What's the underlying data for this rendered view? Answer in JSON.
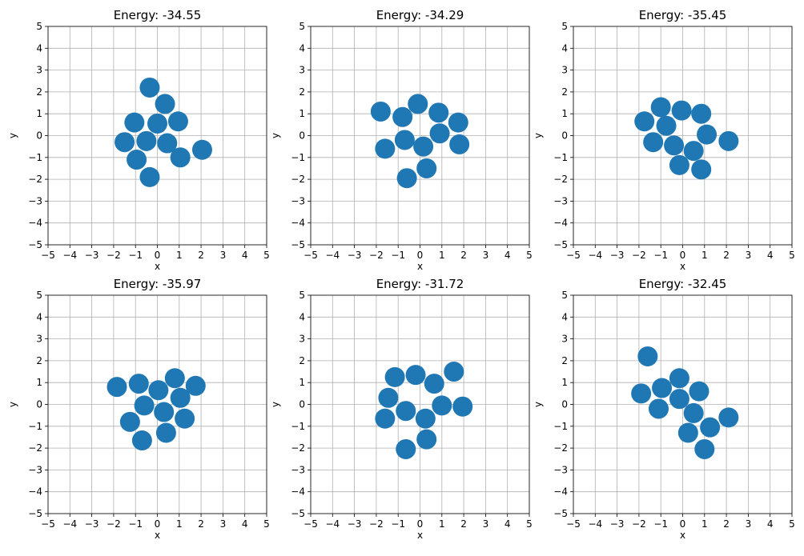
{
  "chart_data": [
    {
      "type": "scatter",
      "title": "Energy: -34.55",
      "xlabel": "x",
      "ylabel": "y",
      "xlim": [
        -5,
        5
      ],
      "ylim": [
        -5,
        5
      ],
      "xticks": [
        "−5",
        "−4",
        "−3",
        "−2",
        "−1",
        "0",
        "1",
        "2",
        "3",
        "4",
        "5"
      ],
      "yticks": [
        "−5",
        "−4",
        "−3",
        "−2",
        "−1",
        "0",
        "1",
        "2",
        "3",
        "4",
        "5"
      ],
      "grid": true,
      "marker_color": "#1f77b4",
      "points": [
        [
          -0.35,
          2.2
        ],
        [
          0.35,
          1.45
        ],
        [
          -1.05,
          0.6
        ],
        [
          0.0,
          0.55
        ],
        [
          0.95,
          0.65
        ],
        [
          -1.5,
          -0.3
        ],
        [
          -0.5,
          -0.25
        ],
        [
          0.45,
          -0.35
        ],
        [
          -0.95,
          -1.1
        ],
        [
          1.05,
          -1.0
        ],
        [
          2.05,
          -0.65
        ],
        [
          -0.35,
          -1.9
        ]
      ]
    },
    {
      "type": "scatter",
      "title": "Energy: -34.29",
      "xlabel": "x",
      "ylabel": "y",
      "xlim": [
        -5,
        5
      ],
      "ylim": [
        -5,
        5
      ],
      "xticks": [
        "−5",
        "−4",
        "−3",
        "−2",
        "−1",
        "0",
        "1",
        "2",
        "3",
        "4",
        "5"
      ],
      "yticks": [
        "−5",
        "−4",
        "−3",
        "−2",
        "−1",
        "0",
        "1",
        "2",
        "3",
        "4",
        "5"
      ],
      "grid": true,
      "marker_color": "#1f77b4",
      "points": [
        [
          -1.8,
          1.1
        ],
        [
          -0.8,
          0.85
        ],
        [
          -0.1,
          1.45
        ],
        [
          0.85,
          1.05
        ],
        [
          1.75,
          0.6
        ],
        [
          -1.6,
          -0.6
        ],
        [
          -0.7,
          -0.2
        ],
        [
          0.15,
          -0.5
        ],
        [
          0.9,
          0.1
        ],
        [
          1.8,
          -0.4
        ],
        [
          0.3,
          -1.5
        ],
        [
          -0.6,
          -1.95
        ]
      ]
    },
    {
      "type": "scatter",
      "title": "Energy: -35.45",
      "xlabel": "x",
      "ylabel": "y",
      "xlim": [
        -5,
        5
      ],
      "ylim": [
        -5,
        5
      ],
      "xticks": [
        "−5",
        "−4",
        "−3",
        "−2",
        "−1",
        "0",
        "1",
        "2",
        "3",
        "4",
        "5"
      ],
      "yticks": [
        "−5",
        "−4",
        "−3",
        "−2",
        "−1",
        "0",
        "1",
        "2",
        "3",
        "4",
        "5"
      ],
      "grid": true,
      "marker_color": "#1f77b4",
      "points": [
        [
          -1.0,
          1.3
        ],
        [
          -0.05,
          1.15
        ],
        [
          0.85,
          1.0
        ],
        [
          -1.75,
          0.65
        ],
        [
          -0.75,
          0.45
        ],
        [
          1.1,
          0.05
        ],
        [
          -1.35,
          -0.3
        ],
        [
          -0.4,
          -0.45
        ],
        [
          0.5,
          -0.7
        ],
        [
          2.1,
          -0.25
        ],
        [
          -0.15,
          -1.35
        ],
        [
          0.85,
          -1.55
        ]
      ]
    },
    {
      "type": "scatter",
      "title": "Energy: -35.97",
      "xlabel": "x",
      "ylabel": "y",
      "xlim": [
        -5,
        5
      ],
      "ylim": [
        -5,
        5
      ],
      "xticks": [
        "−5",
        "−4",
        "−3",
        "−2",
        "−1",
        "0",
        "1",
        "2",
        "3",
        "4",
        "5"
      ],
      "yticks": [
        "−5",
        "−4",
        "−3",
        "−2",
        "−1",
        "0",
        "1",
        "2",
        "3",
        "4",
        "5"
      ],
      "grid": true,
      "marker_color": "#1f77b4",
      "points": [
        [
          -1.85,
          0.8
        ],
        [
          -0.85,
          0.95
        ],
        [
          0.05,
          0.65
        ],
        [
          0.8,
          1.2
        ],
        [
          1.75,
          0.85
        ],
        [
          -0.6,
          -0.05
        ],
        [
          1.05,
          0.3
        ],
        [
          0.3,
          -0.35
        ],
        [
          -1.25,
          -0.8
        ],
        [
          1.25,
          -0.65
        ],
        [
          0.4,
          -1.3
        ],
        [
          -0.7,
          -1.65
        ]
      ]
    },
    {
      "type": "scatter",
      "title": "Energy: -31.72",
      "xlabel": "x",
      "ylabel": "y",
      "xlim": [
        -5,
        5
      ],
      "ylim": [
        -5,
        5
      ],
      "xticks": [
        "−5",
        "−4",
        "−3",
        "−2",
        "−1",
        "0",
        "1",
        "2",
        "3",
        "4",
        "5"
      ],
      "yticks": [
        "−5",
        "−4",
        "−3",
        "−2",
        "−1",
        "0",
        "1",
        "2",
        "3",
        "4",
        "5"
      ],
      "grid": true,
      "marker_color": "#1f77b4",
      "points": [
        [
          -1.15,
          1.25
        ],
        [
          -0.2,
          1.35
        ],
        [
          0.65,
          0.95
        ],
        [
          1.55,
          1.5
        ],
        [
          -1.45,
          0.3
        ],
        [
          -0.65,
          -0.3
        ],
        [
          1.0,
          -0.05
        ],
        [
          1.95,
          -0.1
        ],
        [
          -1.6,
          -0.65
        ],
        [
          0.25,
          -0.65
        ],
        [
          0.3,
          -1.6
        ],
        [
          -0.65,
          -2.05
        ]
      ]
    },
    {
      "type": "scatter",
      "title": "Energy: -32.45",
      "xlabel": "x",
      "ylabel": "y",
      "xlim": [
        -5,
        5
      ],
      "ylim": [
        -5,
        5
      ],
      "xticks": [
        "−5",
        "−4",
        "−3",
        "−2",
        "−1",
        "0",
        "1",
        "2",
        "3",
        "4",
        "5"
      ],
      "yticks": [
        "−5",
        "−4",
        "−3",
        "−2",
        "−1",
        "0",
        "1",
        "2",
        "3",
        "4",
        "5"
      ],
      "grid": true,
      "marker_color": "#1f77b4",
      "points": [
        [
          -1.6,
          2.2
        ],
        [
          -0.15,
          1.2
        ],
        [
          -1.9,
          0.5
        ],
        [
          -0.95,
          0.75
        ],
        [
          0.75,
          0.6
        ],
        [
          -0.15,
          0.25
        ],
        [
          0.5,
          -0.4
        ],
        [
          -1.1,
          -0.2
        ],
        [
          2.1,
          -0.6
        ],
        [
          1.25,
          -1.05
        ],
        [
          0.25,
          -1.3
        ],
        [
          1.0,
          -2.05
        ]
      ]
    }
  ]
}
